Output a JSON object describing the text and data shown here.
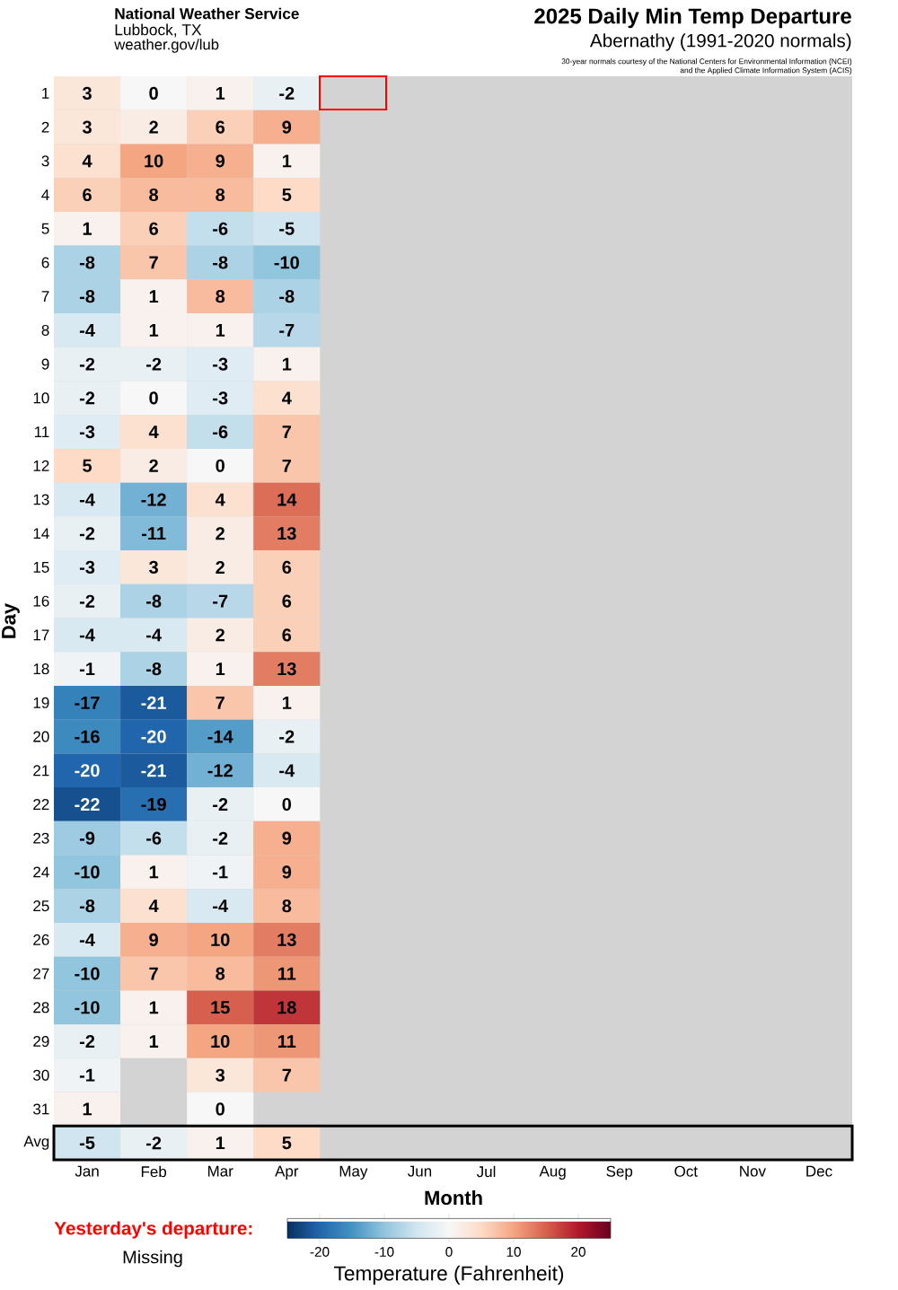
{
  "chart_data": {
    "type": "heatmap",
    "title": "2025 Daily Min Temp Departure",
    "subtitle": "Abernathy (1991-2020 normals)",
    "xlabel": "Month",
    "ylabel": "Day",
    "clabel": "Temperature (Fahrenheit)",
    "annotations": [
      "National Weather Service",
      "Lubbock, TX",
      "weather.gov/lub",
      "30-year normals courtesy of the National Centers for Environmental Information (NCEI)",
      "and the Applied Climate Information System (ACIS)",
      "Yesterday's departure:",
      "Missing"
    ],
    "categories": [
      "Jan",
      "Feb",
      "Mar",
      "Apr",
      "May",
      "Jun",
      "Jul",
      "Aug",
      "Sep",
      "Oct",
      "Nov",
      "Dec"
    ],
    "y_categories": [
      "1",
      "2",
      "3",
      "4",
      "5",
      "6",
      "7",
      "8",
      "9",
      "10",
      "11",
      "12",
      "13",
      "14",
      "15",
      "16",
      "17",
      "18",
      "19",
      "20",
      "21",
      "22",
      "23",
      "24",
      "25",
      "26",
      "27",
      "28",
      "29",
      "30",
      "31",
      "Avg"
    ],
    "cells": [
      [
        3,
        0,
        1,
        -2,
        null,
        null,
        null,
        null,
        null,
        null,
        null,
        null
      ],
      [
        3,
        2,
        6,
        9,
        null,
        null,
        null,
        null,
        null,
        null,
        null,
        null
      ],
      [
        4,
        10,
        9,
        1,
        null,
        null,
        null,
        null,
        null,
        null,
        null,
        null
      ],
      [
        6,
        8,
        8,
        5,
        null,
        null,
        null,
        null,
        null,
        null,
        null,
        null
      ],
      [
        1,
        6,
        -6,
        -5,
        null,
        null,
        null,
        null,
        null,
        null,
        null,
        null
      ],
      [
        -8,
        7,
        -8,
        -10,
        null,
        null,
        null,
        null,
        null,
        null,
        null,
        null
      ],
      [
        -8,
        1,
        8,
        -8,
        null,
        null,
        null,
        null,
        null,
        null,
        null,
        null
      ],
      [
        -4,
        1,
        1,
        -7,
        null,
        null,
        null,
        null,
        null,
        null,
        null,
        null
      ],
      [
        -2,
        -2,
        -3,
        1,
        null,
        null,
        null,
        null,
        null,
        null,
        null,
        null
      ],
      [
        -2,
        0,
        -3,
        4,
        null,
        null,
        null,
        null,
        null,
        null,
        null,
        null
      ],
      [
        -3,
        4,
        -6,
        7,
        null,
        null,
        null,
        null,
        null,
        null,
        null,
        null
      ],
      [
        5,
        2,
        0,
        7,
        null,
        null,
        null,
        null,
        null,
        null,
        null,
        null
      ],
      [
        -4,
        -12,
        4,
        14,
        null,
        null,
        null,
        null,
        null,
        null,
        null,
        null
      ],
      [
        -2,
        -11,
        2,
        13,
        null,
        null,
        null,
        null,
        null,
        null,
        null,
        null
      ],
      [
        -3,
        3,
        2,
        6,
        null,
        null,
        null,
        null,
        null,
        null,
        null,
        null
      ],
      [
        -2,
        -8,
        -7,
        6,
        null,
        null,
        null,
        null,
        null,
        null,
        null,
        null
      ],
      [
        -4,
        -4,
        2,
        6,
        null,
        null,
        null,
        null,
        null,
        null,
        null,
        null
      ],
      [
        -1,
        -8,
        1,
        13,
        null,
        null,
        null,
        null,
        null,
        null,
        null,
        null
      ],
      [
        -17,
        -21,
        7,
        1,
        null,
        null,
        null,
        null,
        null,
        null,
        null,
        null
      ],
      [
        -16,
        -20,
        -14,
        -2,
        null,
        null,
        null,
        null,
        null,
        null,
        null,
        null
      ],
      [
        -20,
        -21,
        -12,
        -4,
        null,
        null,
        null,
        null,
        null,
        null,
        null,
        null
      ],
      [
        -22,
        -19,
        -2,
        0,
        null,
        null,
        null,
        null,
        null,
        null,
        null,
        null
      ],
      [
        -9,
        -6,
        -2,
        9,
        null,
        null,
        null,
        null,
        null,
        null,
        null,
        null
      ],
      [
        -10,
        1,
        -1,
        9,
        null,
        null,
        null,
        null,
        null,
        null,
        null,
        null
      ],
      [
        -8,
        4,
        -4,
        8,
        null,
        null,
        null,
        null,
        null,
        null,
        null,
        null
      ],
      [
        -4,
        9,
        10,
        13,
        null,
        null,
        null,
        null,
        null,
        null,
        null,
        null
      ],
      [
        -10,
        7,
        8,
        11,
        null,
        null,
        null,
        null,
        null,
        null,
        null,
        null
      ],
      [
        -10,
        1,
        15,
        18,
        null,
        null,
        null,
        null,
        null,
        null,
        null,
        null
      ],
      [
        -2,
        1,
        10,
        11,
        null,
        null,
        null,
        null,
        null,
        null,
        null,
        null
      ],
      [
        -1,
        null,
        3,
        7,
        null,
        null,
        null,
        null,
        null,
        null,
        null,
        null
      ],
      [
        1,
        null,
        0,
        null,
        null,
        null,
        null,
        null,
        null,
        null,
        null,
        null
      ],
      [
        -5,
        -2,
        1,
        5,
        null,
        null,
        null,
        null,
        null,
        null,
        null,
        null
      ]
    ],
    "clim": [
      -25,
      25
    ],
    "cticks": [
      -20,
      -10,
      0,
      10,
      20
    ],
    "data_labels": true
  }
}
